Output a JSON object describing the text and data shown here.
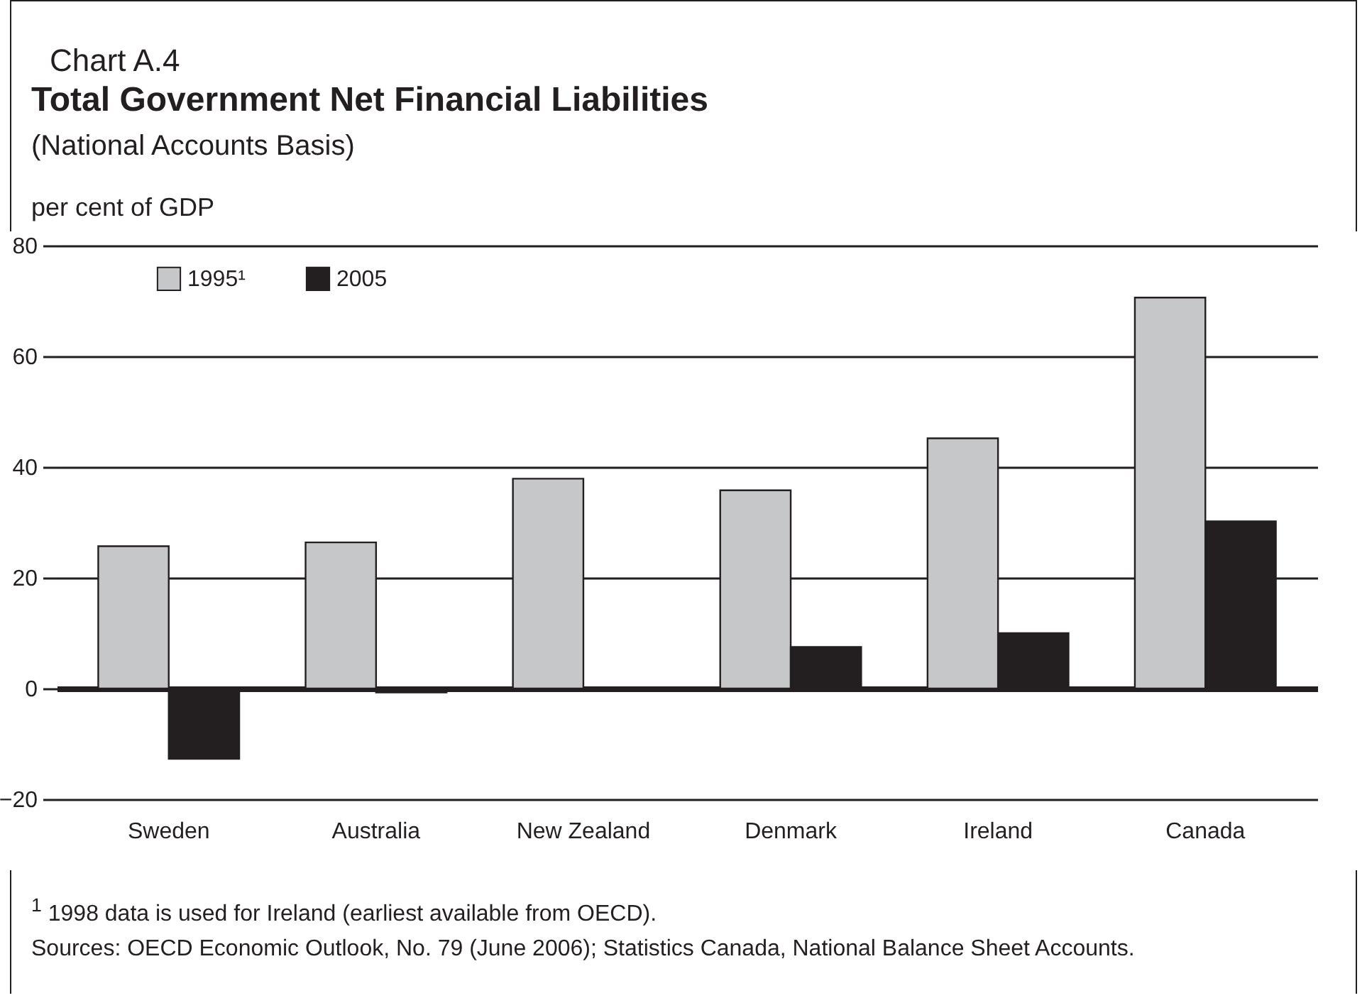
{
  "chart_data": {
    "type": "bar",
    "title": "Total Government Net Financial Liabilities",
    "subtitle": "(National Accounts Basis)",
    "ylabel": "per cent of GDP",
    "categories": [
      "Sweden",
      "Australia",
      "New Zealand",
      "Denmark",
      "Ireland",
      "Canada"
    ],
    "series": [
      {
        "name": "1995¹",
        "color": "#c6c7c9",
        "values": [
          25.7,
          26.4,
          37.9,
          35.8,
          45.2,
          70.6
        ]
      },
      {
        "name": "2005",
        "color": "#231f20",
        "values": [
          -12.7,
          -0.7,
          0,
          7.5,
          10.0,
          30.2
        ]
      }
    ],
    "ylim": [
      -20,
      80
    ],
    "yticks": [
      -20,
      0,
      20,
      40,
      60,
      80
    ],
    "grid": "y",
    "legend": "top left",
    "annotations": [
      "Chart A.4",
      "$^{1}$ 1998 data is used for Ireland (earliest available from OECD).",
      "Sources: OECD Economic Outlook, No. 79 (June 2006); Statistics Canada, National Balance Sheet Accounts."
    ]
  }
}
